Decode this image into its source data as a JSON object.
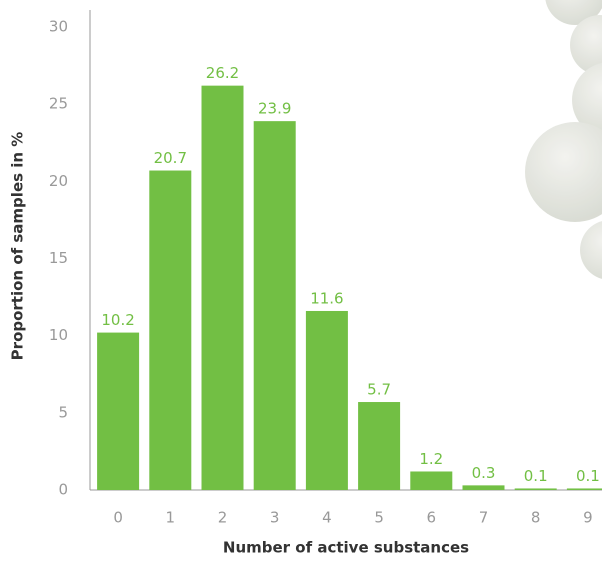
{
  "chart_data": {
    "type": "bar",
    "x_label": "Number of active substances",
    "y_label": "Proportion of samples in %",
    "categories": [
      "0",
      "1",
      "2",
      "3",
      "4",
      "5",
      "6",
      "7",
      "8",
      "9"
    ],
    "values": [
      10.2,
      20.7,
      26.2,
      23.9,
      11.6,
      5.7,
      1.2,
      0.3,
      0.1,
      0.1
    ],
    "color": "#72bf44",
    "ylim": [
      0,
      30
    ],
    "yticks": [
      0,
      5,
      10,
      15,
      20,
      25,
      30
    ],
    "grid": false
  }
}
